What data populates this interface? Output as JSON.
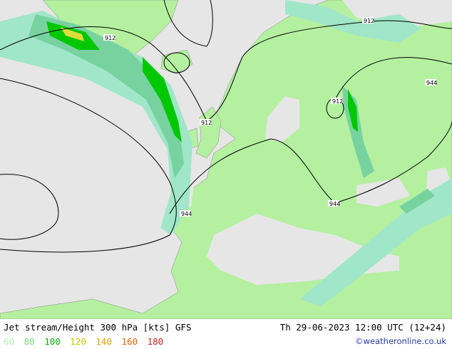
{
  "map": {
    "contour_labels": [
      "912",
      "912",
      "912",
      "912",
      "944",
      "944",
      "944"
    ]
  },
  "footer": {
    "title": "Jet stream/Height 300 hPa [kts] GFS",
    "datetime": "Th 29-06-2023 12:00 UTC (12+24)",
    "credit": "©weatheronline.co.uk",
    "legend": [
      {
        "label": "60",
        "color": "#b4f0b4"
      },
      {
        "label": "80",
        "color": "#78dc78"
      },
      {
        "label": "100",
        "color": "#00b400"
      },
      {
        "label": "120",
        "color": "#c8c800"
      },
      {
        "label": "140",
        "color": "#e6a000"
      },
      {
        "label": "160",
        "color": "#e66400"
      },
      {
        "label": "180",
        "color": "#c81e1e"
      }
    ]
  },
  "colors": {
    "sea": "#e6e6e6",
    "land": "#b4f0a0",
    "jet_60": "#a0e6c8",
    "jet_80": "#78d2a0",
    "jet_100": "#00c800",
    "jet_120": "#dcdc3c"
  }
}
